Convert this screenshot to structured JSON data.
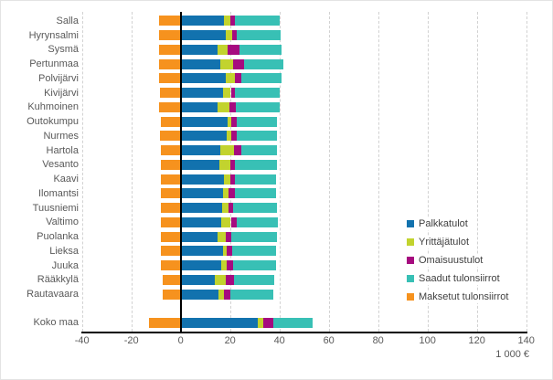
{
  "chart_data": {
    "type": "bar",
    "orientation": "horizontal",
    "stacked": true,
    "title": "",
    "unit_label": "1 000 €",
    "xlim": [
      -40,
      140
    ],
    "x_ticks": [
      -40,
      -20,
      0,
      20,
      40,
      60,
      80,
      100,
      120,
      140
    ],
    "gridlines": "dashed-vertical",
    "legend_position": "inside-right",
    "categories": [
      "Salla",
      "Hyrynsalmi",
      "Sysmä",
      "Pertunmaa",
      "Polvijärvi",
      "Kivijärvi",
      "Kuhmoinen",
      "Outokumpu",
      "Nurmes",
      "Hartola",
      "Vesanto",
      "Kaavi",
      "Ilomantsi",
      "Tuusniemi",
      "Valtimo",
      "Puolanka",
      "Lieksa",
      "Juuka",
      "Rääkkylä",
      "Rautavaara",
      "Koko maa"
    ],
    "series": [
      {
        "name": "Palkkatulot",
        "color": "#1272AE",
        "values": [
          17.5,
          18.1,
          15.0,
          16.0,
          18.3,
          17.2,
          15.1,
          19.1,
          18.7,
          16.0,
          15.6,
          17.6,
          17.2,
          16.9,
          16.4,
          15.1,
          17.2,
          16.4,
          13.7,
          15.4,
          31.2
        ]
      },
      {
        "name": "Yrittäjätulot",
        "color": "#C2D32E",
        "values": [
          2.5,
          2.6,
          4.1,
          5.3,
          3.6,
          3.1,
          4.6,
          1.5,
          1.6,
          5.6,
          4.5,
          2.5,
          2.3,
          2.6,
          3.9,
          3.0,
          1.6,
          2.4,
          4.4,
          2.0,
          2.3
        ]
      },
      {
        "name": "Omaisuustulot",
        "color": "#A60B7F",
        "values": [
          1.8,
          1.9,
          4.6,
          4.2,
          2.7,
          1.6,
          2.5,
          2.0,
          2.3,
          3.1,
          1.7,
          1.7,
          2.3,
          1.8,
          2.5,
          2.5,
          2.2,
          2.5,
          3.4,
          2.6,
          4.1
        ]
      },
      {
        "name": "Saadut tulonsiirrot",
        "color": "#38C0B5",
        "values": [
          18.4,
          17.8,
          17.3,
          16.1,
          16.1,
          18.2,
          18.1,
          16.5,
          16.5,
          14.4,
          17.3,
          17.0,
          17.0,
          17.8,
          16.6,
          18.5,
          17.5,
          17.5,
          16.4,
          17.7,
          15.7
        ]
      },
      {
        "name": "Maksetut tulonsiirrot",
        "color": "#F6921E",
        "values": [
          -8.8,
          -8.8,
          -8.8,
          -8.8,
          -8.8,
          -8.5,
          -8.8,
          -8.0,
          -8.5,
          -8.1,
          -8.1,
          -8.1,
          -8.1,
          -8.1,
          -8.1,
          -8.1,
          -8.1,
          -8.1,
          -7.2,
          -7.2,
          -13.0
        ]
      }
    ]
  }
}
